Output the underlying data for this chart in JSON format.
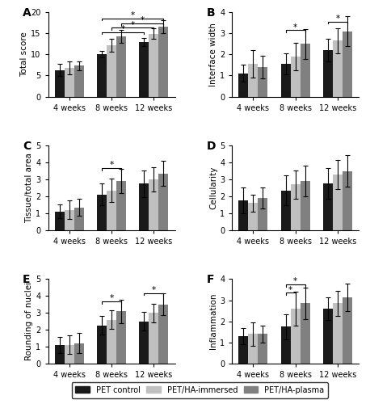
{
  "panels": {
    "A": {
      "ylabel": "Total score",
      "ylim": [
        0,
        20
      ],
      "yticks": [
        0,
        5,
        10,
        15,
        20
      ],
      "groups": [
        "4 weeks",
        "8 weeks",
        "12 weeks"
      ],
      "values": [
        [
          6.3,
          6.8,
          7.3
        ],
        [
          10.1,
          12.1,
          14.3
        ],
        [
          12.9,
          14.9,
          16.5
        ]
      ],
      "errors": [
        [
          1.5,
          1.5,
          1.0
        ],
        [
          0.8,
          1.5,
          1.5
        ],
        [
          1.0,
          1.2,
          1.5
        ]
      ]
    },
    "B": {
      "ylabel": "Interface width",
      "ylim": [
        0,
        4
      ],
      "yticks": [
        0,
        1,
        2,
        3,
        4
      ],
      "groups": [
        "4 weeks",
        "8 weeks",
        "12 weeks"
      ],
      "values": [
        [
          1.1,
          1.55,
          1.4
        ],
        [
          1.55,
          1.9,
          2.5
        ],
        [
          2.2,
          2.65,
          3.1
        ]
      ],
      "errors": [
        [
          0.4,
          0.65,
          0.55
        ],
        [
          0.5,
          0.65,
          0.7
        ],
        [
          0.55,
          0.6,
          0.7
        ]
      ]
    },
    "C": {
      "ylabel": "Tissue/total area",
      "ylim": [
        0,
        5
      ],
      "yticks": [
        0,
        1,
        2,
        3,
        4,
        5
      ],
      "groups": [
        "4 weeks",
        "8 weeks",
        "12 weeks"
      ],
      "values": [
        [
          1.1,
          1.2,
          1.35
        ],
        [
          2.1,
          2.35,
          2.9
        ],
        [
          2.75,
          3.0,
          3.35
        ]
      ],
      "errors": [
        [
          0.4,
          0.55,
          0.5
        ],
        [
          0.65,
          0.7,
          0.7
        ],
        [
          0.8,
          0.7,
          0.75
        ]
      ]
    },
    "D": {
      "ylabel": "Cellularity",
      "ylim": [
        0,
        5
      ],
      "yticks": [
        0,
        1,
        2,
        3,
        4,
        5
      ],
      "groups": [
        "4 weeks",
        "8 weeks",
        "12 weeks"
      ],
      "values": [
        [
          1.75,
          1.6,
          1.9
        ],
        [
          2.35,
          2.7,
          2.9
        ],
        [
          2.75,
          3.3,
          3.5
        ]
      ],
      "errors": [
        [
          0.75,
          0.5,
          0.6
        ],
        [
          0.9,
          0.85,
          0.9
        ],
        [
          0.9,
          0.85,
          0.95
        ]
      ]
    },
    "E": {
      "ylabel": "Rounding of nuclei",
      "ylim": [
        0,
        5
      ],
      "yticks": [
        0,
        1,
        2,
        3,
        4,
        5
      ],
      "groups": [
        "4 weeks",
        "8 weeks",
        "12 weeks"
      ],
      "values": [
        [
          1.1,
          1.1,
          1.2
        ],
        [
          2.25,
          2.6,
          3.1
        ],
        [
          2.5,
          3.0,
          3.5
        ]
      ],
      "errors": [
        [
          0.5,
          0.55,
          0.6
        ],
        [
          0.55,
          0.55,
          0.7
        ],
        [
          0.55,
          0.55,
          0.65
        ]
      ]
    },
    "F": {
      "ylabel": "Inflammation",
      "ylim": [
        0,
        4
      ],
      "yticks": [
        0,
        1,
        2,
        3,
        4
      ],
      "groups": [
        "4 weeks",
        "8 weeks",
        "12 weeks"
      ],
      "values": [
        [
          1.3,
          1.4,
          1.4
        ],
        [
          1.75,
          2.6,
          2.85
        ],
        [
          2.6,
          2.85,
          3.15
        ]
      ],
      "errors": [
        [
          0.4,
          0.55,
          0.4
        ],
        [
          0.6,
          0.8,
          0.75
        ],
        [
          0.55,
          0.6,
          0.65
        ]
      ]
    }
  },
  "bar_colors": [
    "#1a1a1a",
    "#c0c0c0",
    "#808080"
  ],
  "legend_labels": [
    "PET control",
    "PET/HA-immersed",
    "PET/HA-plasma"
  ],
  "bar_width": 0.23,
  "label_fontsize": 7.5,
  "tick_fontsize": 7,
  "panel_label_fontsize": 10
}
